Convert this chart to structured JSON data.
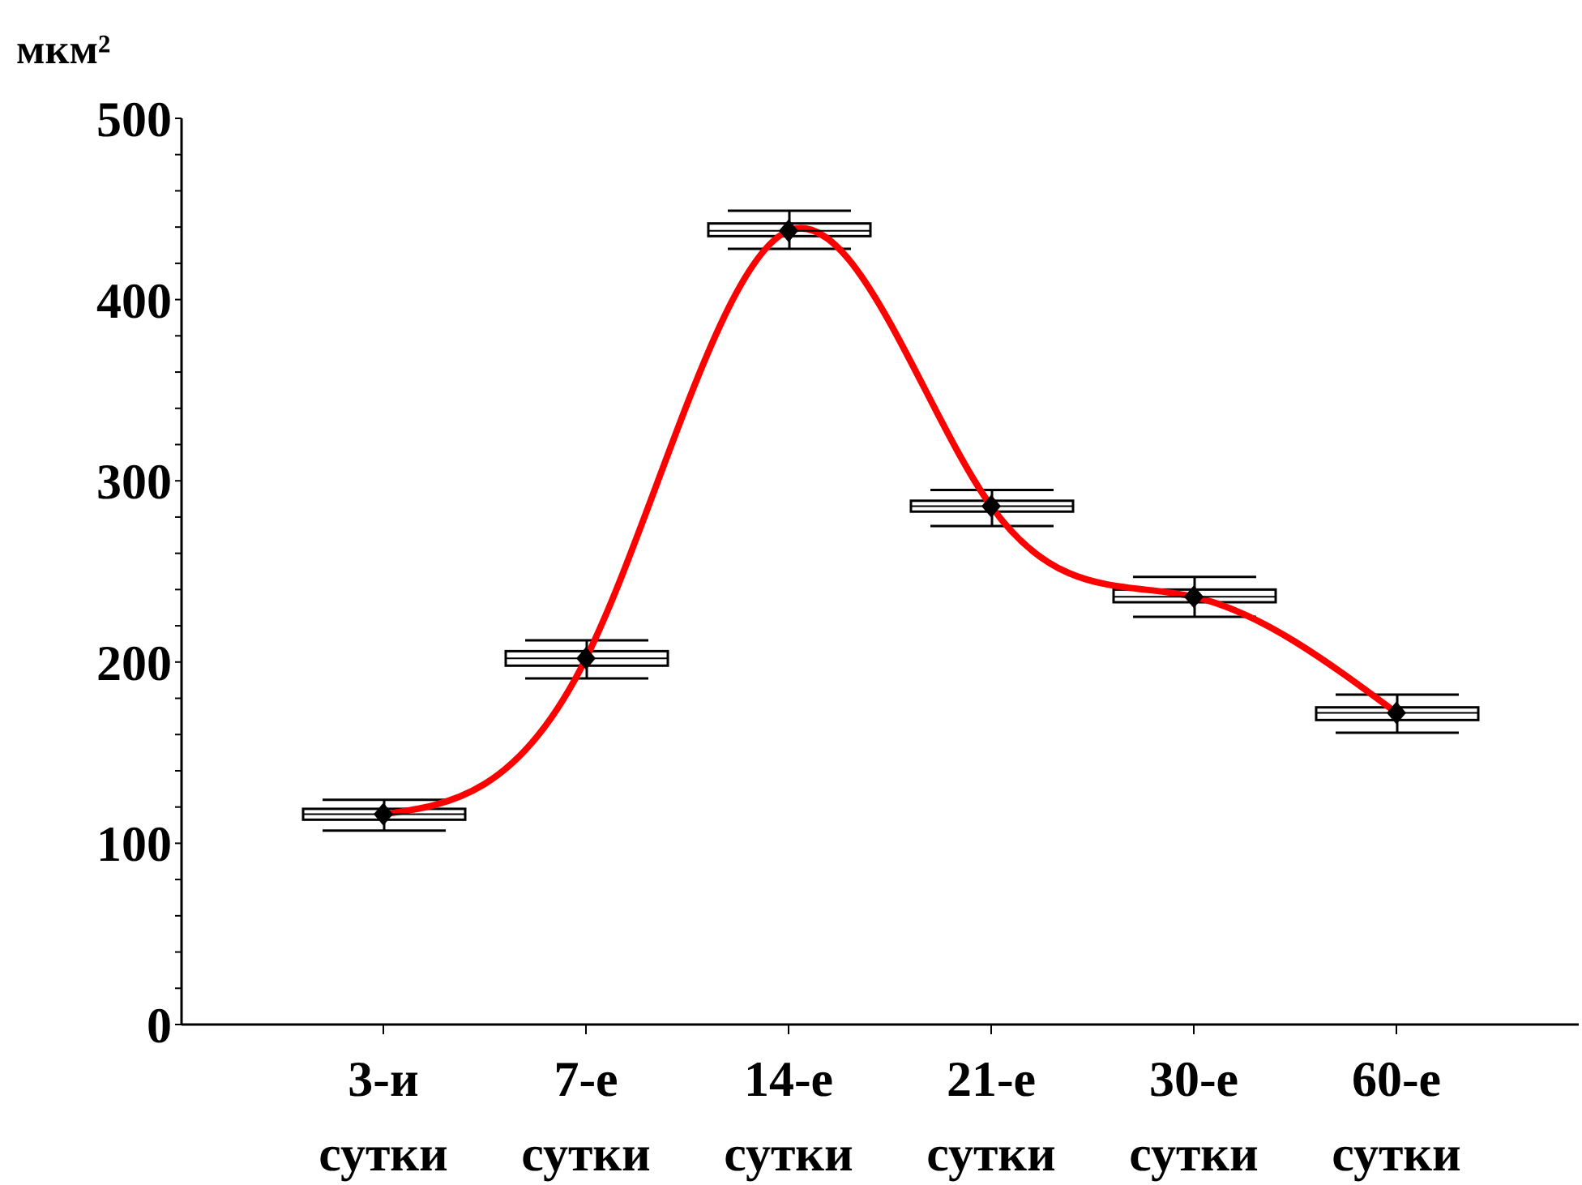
{
  "chart_data": {
    "type": "box",
    "ylabel": "мкм²",
    "categories": [
      "3-и сутки",
      "7-е сутки",
      "14-е сутки",
      "21-е сутки",
      "30-е сутки",
      "60-е сутки"
    ],
    "ylim": [
      0,
      500
    ],
    "yticks": [
      0,
      {
        "value": 20,
        "label": null
      },
      {
        "value": 40,
        "label": null
      },
      {
        "value": 60,
        "label": null
      },
      {
        "value": 80,
        "label": null
      },
      100,
      {
        "value": 120,
        "label": null
      },
      {
        "value": 140,
        "label": null
      },
      {
        "value": 160,
        "label": null
      },
      {
        "value": 180,
        "label": null
      },
      200,
      {
        "value": 220,
        "label": null
      },
      {
        "value": 240,
        "label": null
      },
      {
        "value": 260,
        "label": null
      },
      {
        "value": 280,
        "label": null
      },
      300,
      {
        "value": 320,
        "label": null
      },
      {
        "value": 340,
        "label": null
      },
      {
        "value": 360,
        "label": null
      },
      {
        "value": 380,
        "label": null
      },
      400,
      {
        "value": 420,
        "label": null
      },
      {
        "value": 440,
        "label": null
      },
      {
        "value": 460,
        "label": null
      },
      {
        "value": 480,
        "label": null
      },
      500
    ],
    "grid": false,
    "marker": "diamond",
    "series": [
      {
        "type": "box",
        "color": "#000000",
        "boxes": [
          {
            "low": 107,
            "q1": 113,
            "median": 116,
            "q3": 119,
            "high": 124
          },
          {
            "low": 191,
            "q1": 198,
            "median": 202,
            "q3": 206,
            "high": 212
          },
          {
            "low": 428,
            "q1": 435,
            "median": 438,
            "q3": 442,
            "high": 449
          },
          {
            "low": 275,
            "q1": 283,
            "median": 286,
            "q3": 289,
            "high": 295
          },
          {
            "low": 225,
            "q1": 233,
            "median": 236,
            "q3": 240,
            "high": 247
          },
          {
            "low": 161,
            "q1": 168,
            "median": 172,
            "q3": 175,
            "high": 182
          }
        ]
      },
      {
        "type": "line",
        "color": "#ff0000",
        "values": [
          116,
          202,
          438,
          286,
          236,
          172
        ]
      }
    ]
  }
}
